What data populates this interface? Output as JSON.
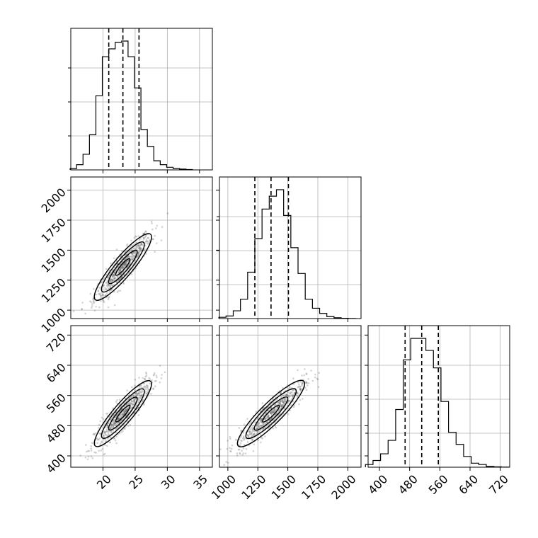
{
  "chart_data": {
    "type": "corner",
    "grid": true,
    "params": [
      {
        "range": [
          15,
          37
        ],
        "ticks": [
          20,
          25,
          30,
          35
        ],
        "median": 23.1,
        "q16": 20.9,
        "q84": 25.6,
        "bins": [
          14.9,
          15.9,
          16.9,
          17.9,
          18.9,
          19.9,
          20.9,
          21.9,
          22.9,
          23.9,
          24.9,
          25.9,
          26.9,
          27.9,
          28.9,
          29.9,
          30.9,
          31.9,
          32.9,
          33.9
        ],
        "hist": [
          0.01,
          0.04,
          0.12,
          0.27,
          0.57,
          0.87,
          0.93,
          0.98,
          0.99,
          0.87,
          0.63,
          0.31,
          0.18,
          0.07,
          0.04,
          0.02,
          0.01,
          0.006,
          0.003
        ]
      },
      {
        "range": [
          930,
          2110
        ],
        "ticks": [
          1000,
          1250,
          1500,
          1750,
          2000
        ],
        "median": 1360,
        "q16": 1225,
        "q84": 1505,
        "bins": [
          925,
          985,
          1045,
          1105,
          1165,
          1225,
          1285,
          1345,
          1405,
          1465,
          1525,
          1585,
          1645,
          1705,
          1765,
          1825,
          1885,
          1945,
          2005,
          2065
        ],
        "hist": [
          0.01,
          0.02,
          0.06,
          0.15,
          0.36,
          0.62,
          0.85,
          0.95,
          1.0,
          0.8,
          0.55,
          0.35,
          0.15,
          0.08,
          0.04,
          0.015,
          0.006,
          0.002,
          0.001
        ]
      },
      {
        "range": [
          370,
          745
        ],
        "ticks": [
          400,
          480,
          560,
          640,
          720
        ],
        "median": 512,
        "q16": 468,
        "q84": 556,
        "bins": [
          363,
          383,
          403,
          423,
          443,
          463,
          483,
          503,
          523,
          543,
          563,
          583,
          603,
          623,
          643,
          663,
          683,
          703,
          723,
          743
        ],
        "hist": [
          0.02,
          0.05,
          0.1,
          0.2,
          0.43,
          0.8,
          0.96,
          0.96,
          0.87,
          0.74,
          0.49,
          0.26,
          0.17,
          0.08,
          0.03,
          0.02,
          0.006,
          0.003,
          0.001
        ]
      }
    ],
    "correlations": [
      {
        "x": 0,
        "y": 1,
        "rho": 0.9
      },
      {
        "x": 0,
        "y": 2,
        "rho": 0.9
      },
      {
        "x": 1,
        "y": 2,
        "rho": 0.9
      }
    ],
    "std": [
      2.2,
      140,
      44
    ]
  }
}
